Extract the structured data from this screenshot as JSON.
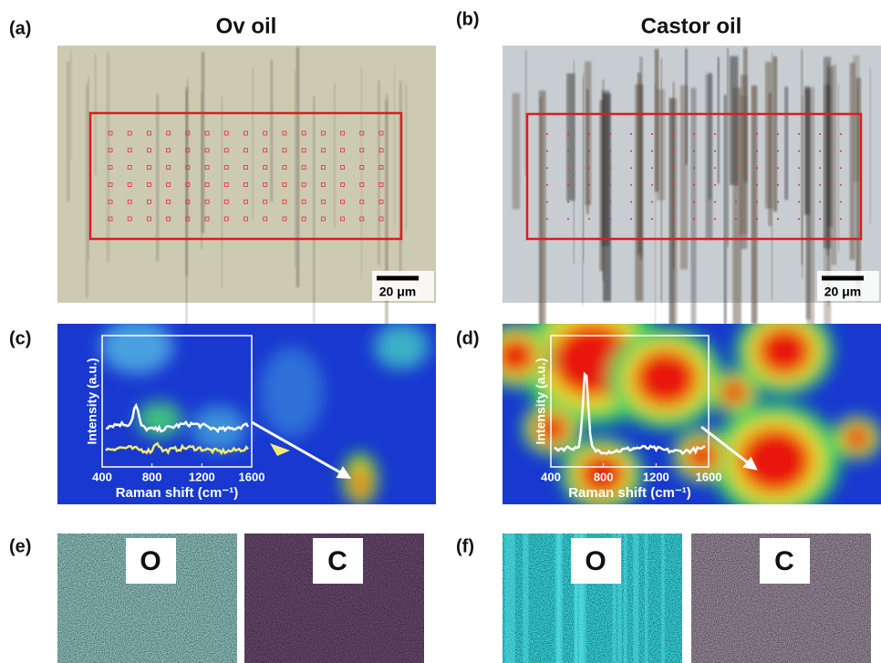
{
  "panels": [
    {
      "label": "(a)",
      "title": "Ov oil",
      "scale_bar": "20 μm"
    },
    {
      "label": "(b)",
      "title": "Castor oil",
      "scale_bar": "20 μm"
    },
    {
      "label": "(c)",
      "inset": {
        "y_label": "Intensity (a.u.)",
        "x_label": "Raman shift (cm⁻¹)",
        "x_ticks": [
          "400",
          "800",
          "1200",
          "1600"
        ]
      }
    },
    {
      "label": "(d)",
      "inset": {
        "y_label": "Intensity (a.u.)",
        "x_label": "Raman shift (cm⁻¹)",
        "x_ticks": [
          "400",
          "800",
          "1200",
          "1600"
        ]
      }
    },
    {
      "label": "(e)",
      "maps": [
        "O",
        "C"
      ]
    },
    {
      "label": "(f)",
      "maps": [
        "O",
        "C"
      ]
    }
  ]
}
